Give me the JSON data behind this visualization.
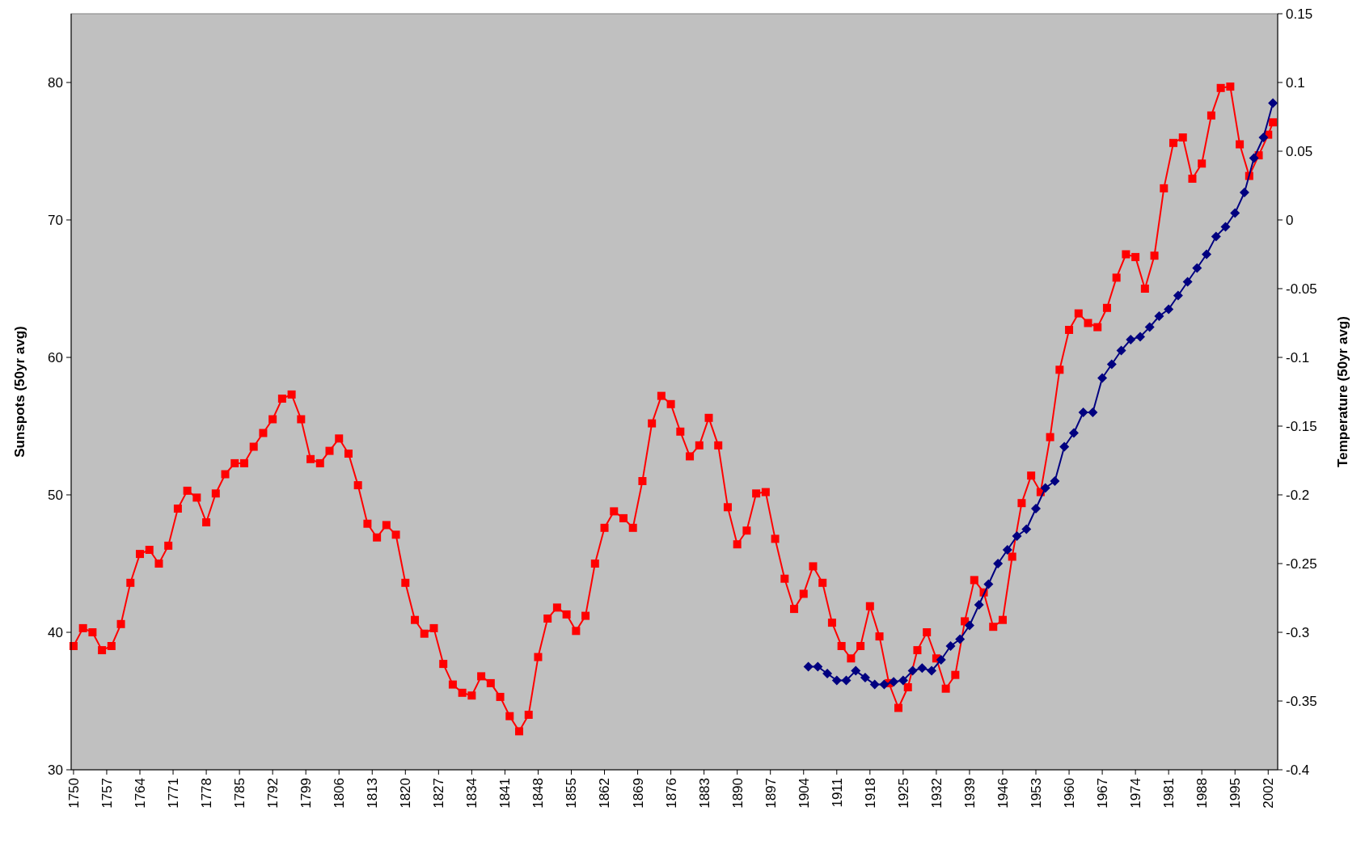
{
  "chart_data": {
    "type": "line",
    "ylabel": "Sunspots (50yr avg)",
    "y2label": "Temperature (50yr avg)",
    "xlim": [
      1749.5,
      2004
    ],
    "xticks": [
      1750,
      1757,
      1764,
      1771,
      1778,
      1785,
      1792,
      1799,
      1806,
      1813,
      1820,
      1827,
      1834,
      1841,
      1848,
      1855,
      1862,
      1869,
      1876,
      1883,
      1890,
      1897,
      1904,
      1911,
      1918,
      1925,
      1932,
      1939,
      1946,
      1953,
      1960,
      1967,
      1974,
      1981,
      1988,
      1995,
      2002
    ],
    "ylim": [
      30,
      85
    ],
    "yticks": [
      30,
      40,
      50,
      60,
      70,
      80
    ],
    "y2lim": [
      -0.4,
      0.15
    ],
    "y2ticks": [
      -0.4,
      -0.35,
      -0.3,
      -0.25,
      -0.2,
      -0.15,
      -0.1,
      -0.05,
      0,
      0.05,
      0.1,
      0.15
    ],
    "grid": false,
    "series": [
      {
        "color": "#ff0000",
        "marker": "square",
        "x": [
          1750,
          1752,
          1754,
          1756,
          1758,
          1760,
          1762,
          1764,
          1766,
          1768,
          1770,
          1772,
          1774,
          1776,
          1778,
          1780,
          1782,
          1784,
          1786,
          1788,
          1790,
          1792,
          1794,
          1796,
          1798,
          1800,
          1802,
          1804,
          1806,
          1808,
          1810,
          1812,
          1814,
          1816,
          1818,
          1820,
          1822,
          1824,
          1826,
          1828,
          1830,
          1832,
          1834,
          1836,
          1838,
          1840,
          1842,
          1844,
          1846,
          1848,
          1850,
          1852,
          1854,
          1856,
          1858,
          1860,
          1862,
          1864,
          1866,
          1868,
          1870,
          1872,
          1874,
          1876,
          1878,
          1880,
          1882,
          1884,
          1886,
          1888,
          1890,
          1892,
          1894,
          1896,
          1898,
          1900,
          1902,
          1904,
          1906,
          1908,
          1910,
          1912,
          1914,
          1916,
          1918,
          1920,
          1922,
          1924,
          1926,
          1928,
          1930,
          1932,
          1934,
          1936,
          1938,
          1940,
          1942,
          1944,
          1946,
          1948,
          1950,
          1952,
          1954,
          1956,
          1958,
          1960,
          1962,
          1964,
          1966,
          1968,
          1970,
          1972,
          1974,
          1976,
          1978,
          1980,
          1982,
          1984,
          1986,
          1988,
          1990,
          1992,
          1994,
          1996,
          1998,
          2000,
          2002,
          2003
        ],
        "values": [
          39.0,
          40.3,
          40.0,
          38.7,
          39.0,
          40.6,
          43.6,
          45.7,
          46.0,
          45.0,
          46.3,
          49.0,
          50.3,
          49.8,
          48.0,
          50.1,
          51.5,
          52.3,
          52.3,
          53.5,
          54.5,
          55.5,
          57.0,
          57.3,
          55.5,
          52.6,
          52.3,
          53.2,
          54.1,
          53.0,
          50.7,
          47.9,
          46.9,
          47.8,
          47.1,
          43.6,
          40.9,
          39.9,
          40.3,
          37.7,
          36.2,
          35.6,
          35.4,
          36.8,
          36.3,
          35.3,
          33.9,
          32.8,
          34.0,
          38.2,
          41.0,
          41.8,
          41.3,
          40.1,
          41.2,
          45.0,
          47.6,
          48.8,
          48.3,
          47.6,
          51.0,
          55.2,
          57.2,
          56.6,
          54.6,
          52.8,
          53.6,
          55.6,
          53.6,
          49.1,
          46.4,
          47.4,
          50.1,
          50.2,
          46.8,
          43.9,
          41.7,
          42.8,
          44.8,
          43.6,
          40.7,
          39.0,
          38.1,
          39.0,
          41.9,
          39.7,
          36.3,
          34.5,
          36.0,
          38.7,
          40.0,
          38.1,
          35.9,
          36.9,
          40.8,
          43.8,
          42.9,
          40.4,
          40.9,
          45.5,
          49.4,
          51.4,
          50.2,
          54.2,
          59.1,
          62.0,
          63.2,
          62.5,
          62.2,
          63.6,
          65.8,
          67.5,
          67.3,
          65.0,
          67.4,
          72.3,
          75.6,
          76.0,
          73.0,
          74.1,
          77.6,
          79.6,
          79.7,
          75.5,
          73.2,
          74.7,
          76.2,
          77.1
        ]
      },
      {
        "color": "#000080",
        "marker": "diamond",
        "axis": "y2",
        "x": [
          1905,
          1907,
          1909,
          1911,
          1913,
          1915,
          1917,
          1919,
          1921,
          1923,
          1925,
          1927,
          1929,
          1931,
          1933,
          1935,
          1937,
          1939,
          1941,
          1943,
          1945,
          1947,
          1949,
          1951,
          1953,
          1955,
          1957,
          1959,
          1961,
          1963,
          1965,
          1967,
          1969,
          1971,
          1973,
          1975,
          1977,
          1979,
          1981,
          1983,
          1985,
          1987,
          1989,
          1991,
          1993,
          1995,
          1997,
          1999,
          2001,
          2003
        ],
        "values": [
          -0.325,
          -0.325,
          -0.33,
          -0.335,
          -0.335,
          -0.328,
          -0.333,
          -0.338,
          -0.338,
          -0.336,
          -0.335,
          -0.328,
          -0.326,
          -0.328,
          -0.32,
          -0.31,
          -0.305,
          -0.295,
          -0.28,
          -0.265,
          -0.25,
          -0.24,
          -0.23,
          -0.225,
          -0.21,
          -0.195,
          -0.19,
          -0.165,
          -0.155,
          -0.14,
          -0.14,
          -0.115,
          -0.105,
          -0.095,
          -0.087,
          -0.085,
          -0.078,
          -0.07,
          -0.065,
          -0.055,
          -0.045,
          -0.035,
          -0.025,
          -0.012,
          -0.005,
          0.005,
          0.02,
          0.045,
          0.06,
          0.085
        ]
      }
    ]
  }
}
